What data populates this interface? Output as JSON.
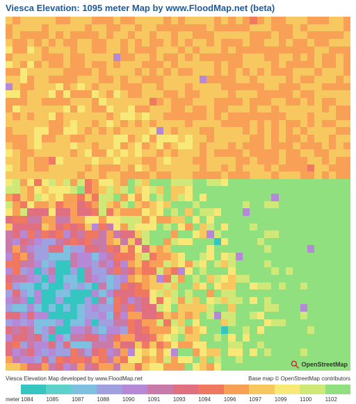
{
  "title": "Viesca Elevation: 1095 meter Map by www.FloodMap.net (beta)",
  "footer": {
    "left": "Viesca Elevation Map developed by www.FloodMap.net",
    "right": "Base map © OpenStreetMap contributors"
  },
  "logo_text": "OpenStreetMap",
  "legend": {
    "unit_label": "meter",
    "ticks": [
      "1084",
      "1085",
      "1087",
      "1088",
      "1090",
      "1091",
      "1093",
      "1094",
      "1096",
      "1097",
      "1099",
      "1100",
      "1102"
    ],
    "colors": [
      "#35c6c1",
      "#5ed1ca",
      "#7fbfe0",
      "#a0a0e0",
      "#b588d8",
      "#c87aa8",
      "#e07080",
      "#f07860",
      "#f8a055",
      "#f8c860",
      "#f8e878",
      "#d0e878",
      "#90e080"
    ]
  },
  "heatmap": {
    "type": "heatmap",
    "grid_cols": 48,
    "grid_rows": 48,
    "background_color": "#ffffff",
    "palette": {
      "0": "#35c6c1",
      "1": "#7fbfe0",
      "2": "#a0a0e0",
      "3": "#b588d8",
      "4": "#c87aa8",
      "5": "#e07080",
      "6": "#f07860",
      "7": "#f8a055",
      "8": "#f8c860",
      "9": "#f8e878",
      "10": "#d0e878",
      "11": "#90e080"
    },
    "seed": 7
  }
}
